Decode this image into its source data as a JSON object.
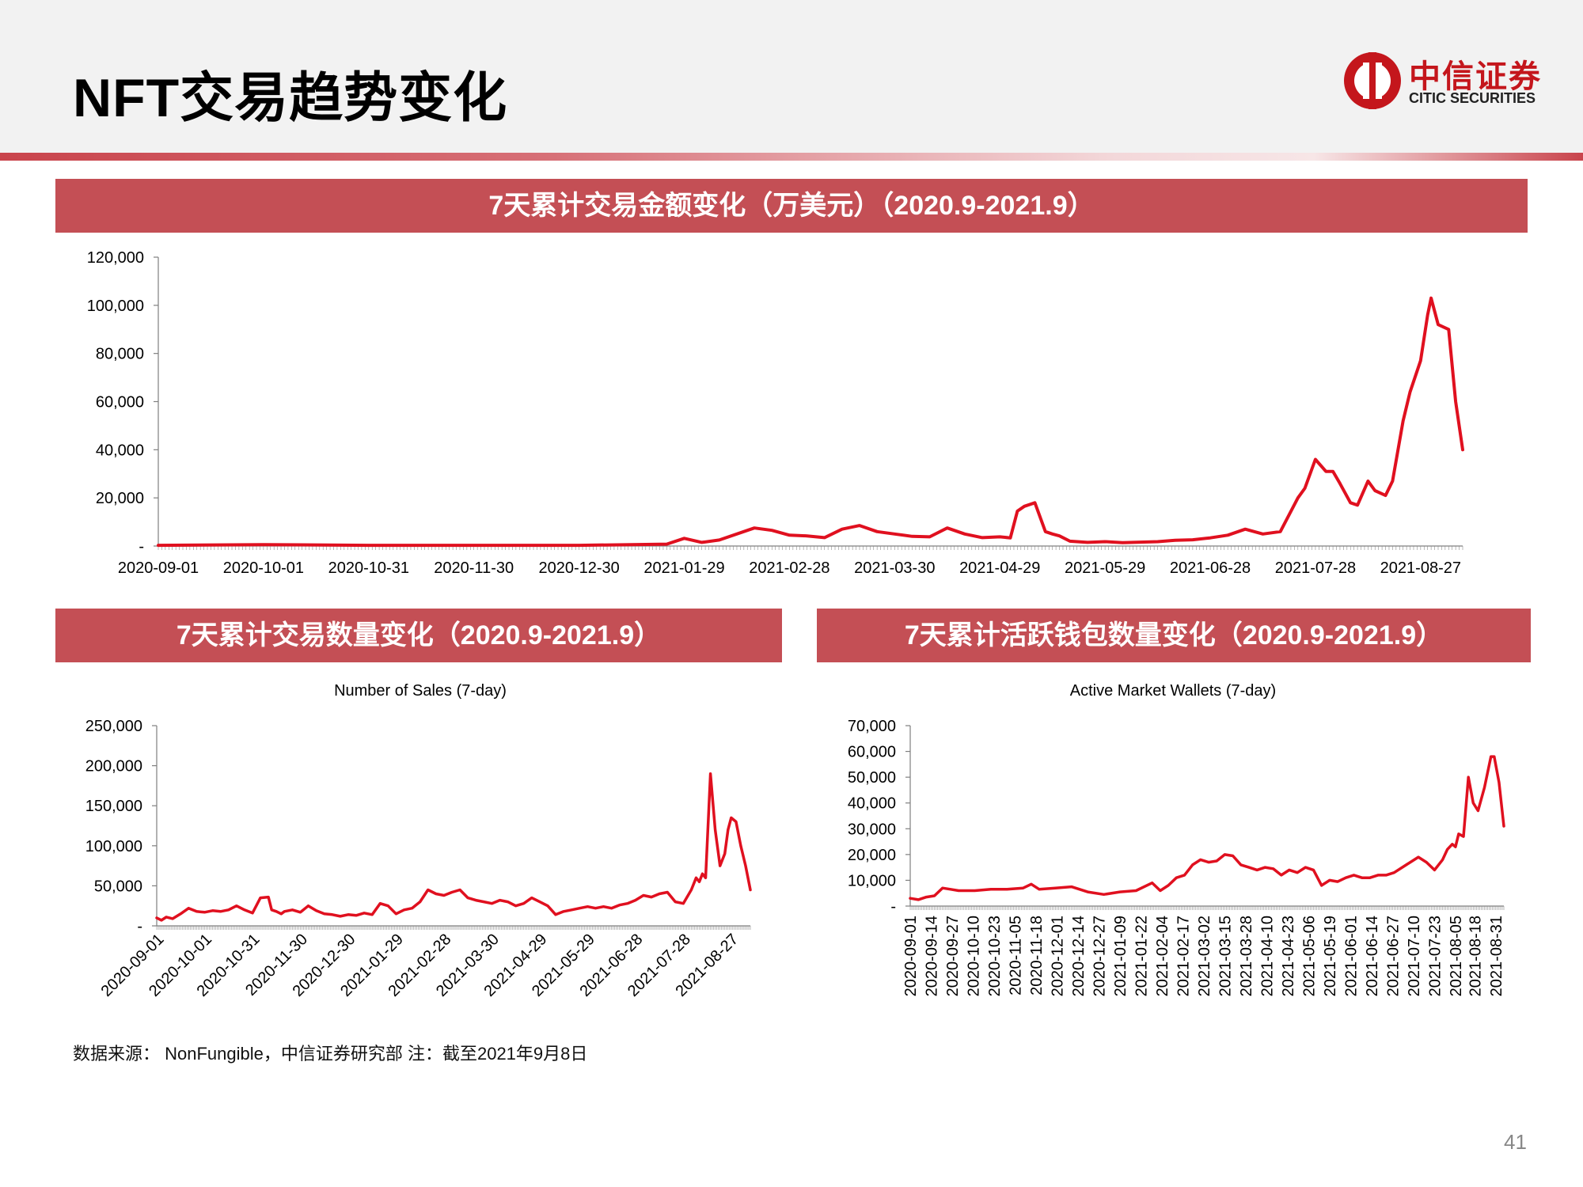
{
  "header": {
    "title": "NFT交易趋势变化",
    "logo_cn": "中信证券",
    "logo_en": "CITIC SECURITIES"
  },
  "colors": {
    "accent": "#c44f55",
    "line": "#e0101f",
    "brand": "#c4161c"
  },
  "footer": {
    "source": "数据来源： NonFungible，中信证券研究部   注：截至2021年9月8日",
    "page_number": "41"
  },
  "chart_data": [
    {
      "id": "value",
      "type": "line",
      "banner": "7天累计交易金额变化（万美元）（2020.9-2021.9）",
      "title": "",
      "ylabel": "",
      "ylim": [
        0,
        120000
      ],
      "yticks": [
        0,
        20000,
        40000,
        60000,
        80000,
        100000,
        120000
      ],
      "ytick_labels": [
        "-",
        "20,000",
        "40,000",
        "60,000",
        "80,000",
        "100,000",
        "120,000"
      ],
      "x_range": [
        0,
        372
      ],
      "xticks": [
        0,
        30,
        60,
        90,
        120,
        150,
        180,
        210,
        240,
        270,
        300,
        330,
        360
      ],
      "xtick_labels": [
        "2020-09-01",
        "2020-10-01",
        "2020-10-31",
        "2020-11-30",
        "2020-12-30",
        "2021-01-29",
        "2021-02-28",
        "2021-03-30",
        "2021-04-29",
        "2021-05-29",
        "2021-06-28",
        "2021-07-28",
        "2021-08-27"
      ],
      "series": [
        {
          "name": "7天累计交易金额（万美元）",
          "x": [
            0,
            30,
            60,
            90,
            120,
            145,
            150,
            155,
            160,
            170,
            175,
            180,
            185,
            190,
            195,
            200,
            205,
            210,
            215,
            220,
            225,
            230,
            235,
            240,
            243,
            245,
            247,
            250,
            253,
            255,
            257,
            260,
            265,
            270,
            275,
            280,
            285,
            290,
            295,
            300,
            305,
            310,
            315,
            320,
            325,
            327,
            330,
            333,
            335,
            337,
            340,
            342,
            345,
            347,
            350,
            352,
            355,
            357,
            360,
            362,
            363,
            365,
            368,
            370,
            372
          ],
          "y": [
            300,
            600,
            300,
            300,
            300,
            800,
            3200,
            1500,
            2500,
            7500,
            6500,
            4500,
            4200,
            3500,
            7000,
            8500,
            6000,
            5000,
            4000,
            3800,
            7500,
            5000,
            3500,
            3800,
            3400,
            14500,
            16500,
            18000,
            6000,
            5000,
            4200,
            2000,
            1500,
            1800,
            1400,
            1600,
            1800,
            2400,
            2600,
            3400,
            4500,
            7000,
            5000,
            6000,
            20000,
            24000,
            36000,
            31000,
            31000,
            26000,
            18000,
            17000,
            27000,
            23000,
            21000,
            27000,
            52000,
            64000,
            77000,
            96000,
            103000,
            92000,
            90000,
            60000,
            40000
          ]
        }
      ]
    },
    {
      "id": "sales",
      "type": "line",
      "banner": "7天累计交易数量变化（2020.9-2021.9）",
      "title": "Number of Sales (7-day)",
      "ylim": [
        0,
        250000
      ],
      "yticks": [
        0,
        50000,
        100000,
        150000,
        200000,
        250000
      ],
      "ytick_labels": [
        "-",
        "50,000",
        "100,000",
        "150,000",
        "200,000",
        "250,000"
      ],
      "x_range": [
        0,
        372
      ],
      "xticks": [
        0,
        30,
        60,
        90,
        120,
        150,
        180,
        210,
        240,
        270,
        300,
        330,
        360
      ],
      "xtick_labels": [
        "2020-09-01",
        "2020-10-01",
        "2020-10-31",
        "2020-11-30",
        "2020-12-30",
        "2021-01-29",
        "2021-02-28",
        "2021-03-30",
        "2021-04-29",
        "2021-05-29",
        "2021-06-28",
        "2021-07-28",
        "2021-08-27"
      ],
      "series": [
        {
          "name": "Number of Sales (7-day)",
          "x": [
            0,
            3,
            6,
            10,
            15,
            20,
            25,
            30,
            35,
            40,
            45,
            50,
            55,
            60,
            65,
            70,
            72,
            75,
            78,
            80,
            85,
            90,
            95,
            100,
            105,
            110,
            115,
            120,
            125,
            130,
            135,
            140,
            145,
            150,
            155,
            160,
            165,
            170,
            175,
            180,
            185,
            190,
            195,
            200,
            205,
            210,
            215,
            220,
            225,
            230,
            235,
            240,
            245,
            250,
            255,
            260,
            265,
            270,
            275,
            280,
            285,
            290,
            295,
            300,
            305,
            310,
            315,
            320,
            325,
            330,
            335,
            338,
            340,
            342,
            344,
            347,
            350,
            353,
            356,
            358,
            360,
            363,
            366,
            369,
            372
          ],
          "y": [
            10000,
            7000,
            11000,
            9000,
            15000,
            22000,
            18000,
            17000,
            19000,
            18000,
            20000,
            25000,
            20000,
            16000,
            35000,
            36000,
            20000,
            18000,
            15000,
            18000,
            20000,
            17000,
            25000,
            19000,
            15000,
            14000,
            12000,
            14000,
            13000,
            16000,
            14000,
            28000,
            25000,
            15000,
            20000,
            22000,
            30000,
            45000,
            40000,
            38000,
            42000,
            45000,
            35000,
            32000,
            30000,
            28000,
            32000,
            30000,
            25000,
            28000,
            35000,
            30000,
            25000,
            14000,
            18000,
            20000,
            22000,
            24000,
            22000,
            24000,
            22000,
            26000,
            28000,
            32000,
            38000,
            36000,
            40000,
            42000,
            30000,
            28000,
            45000,
            60000,
            55000,
            65000,
            60000,
            190000,
            120000,
            75000,
            90000,
            120000,
            135000,
            130000,
            100000,
            75000,
            45000
          ]
        }
      ]
    },
    {
      "id": "wallets",
      "type": "line",
      "banner": "7天累计活跃钱包数量变化（2020.9-2021.9）",
      "title": "Active Market Wallets (7-day)",
      "ylim": [
        0,
        70000
      ],
      "yticks": [
        0,
        10000,
        20000,
        30000,
        40000,
        50000,
        60000,
        70000
      ],
      "ytick_labels": [
        "-",
        "10,000",
        "20,000",
        "30,000",
        "40,000",
        "50,000",
        "60,000",
        "70,000"
      ],
      "x_range": [
        0,
        368
      ],
      "xticks": [
        0,
        13,
        26,
        39,
        52,
        65,
        78,
        91,
        104,
        117,
        130,
        143,
        156,
        169,
        182,
        195,
        208,
        221,
        234,
        247,
        260,
        273,
        286,
        299,
        312,
        325,
        338,
        350,
        363
      ],
      "xtick_labels": [
        "2020-09-01",
        "2020-09-14",
        "2020-09-27",
        "2020-10-10",
        "2020-10-23",
        "2020-11-05",
        "2020-11-18",
        "2020-12-01",
        "2020-12-14",
        "2020-12-27",
        "2021-01-09",
        "2021-01-22",
        "2021-02-04",
        "2021-02-17",
        "2021-03-02",
        "2021-03-15",
        "2021-03-28",
        "2021-04-10",
        "2021-04-23",
        "2021-05-06",
        "2021-05-19",
        "2021-06-01",
        "2021-06-14",
        "2021-06-27",
        "2021-07-10",
        "2021-07-23",
        "2021-08-05",
        "2021-08-18",
        "2021-08-31"
      ],
      "series": [
        {
          "name": "Active Market Wallets (7-day)",
          "x": [
            0,
            5,
            10,
            15,
            20,
            25,
            30,
            40,
            50,
            60,
            70,
            75,
            80,
            90,
            100,
            105,
            110,
            120,
            130,
            140,
            150,
            155,
            160,
            165,
            170,
            175,
            180,
            185,
            190,
            195,
            200,
            205,
            210,
            215,
            220,
            225,
            230,
            235,
            240,
            245,
            250,
            255,
            260,
            265,
            270,
            275,
            280,
            285,
            290,
            295,
            300,
            305,
            310,
            315,
            320,
            325,
            330,
            333,
            336,
            338,
            340,
            343,
            346,
            349,
            352,
            356,
            360,
            362,
            365,
            368
          ],
          "y": [
            3000,
            2500,
            3500,
            4000,
            7000,
            6500,
            6000,
            6000,
            6500,
            6500,
            7000,
            8500,
            6500,
            7000,
            7500,
            6500,
            5500,
            4500,
            5500,
            6000,
            9000,
            6000,
            8000,
            11000,
            12000,
            16000,
            18000,
            17000,
            17500,
            20000,
            19500,
            16000,
            15000,
            14000,
            15000,
            14500,
            12000,
            14000,
            13000,
            15000,
            14000,
            8000,
            10000,
            9500,
            11000,
            12000,
            11000,
            11000,
            12000,
            12000,
            13000,
            15000,
            17000,
            19000,
            17000,
            14000,
            18000,
            22000,
            24000,
            23000,
            28000,
            27000,
            50000,
            40000,
            37000,
            46000,
            58000,
            58000,
            48000,
            31000
          ]
        }
      ]
    }
  ]
}
